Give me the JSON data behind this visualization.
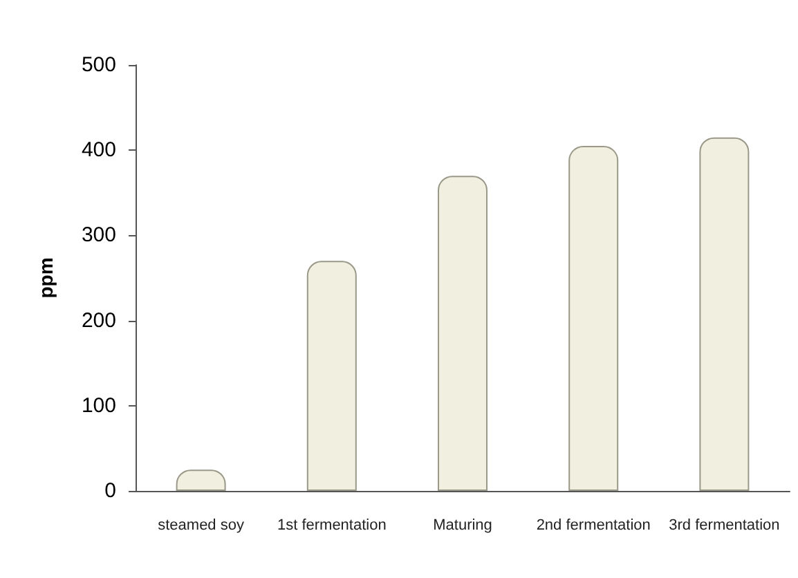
{
  "chart_data": {
    "type": "bar",
    "ylabel": "ppm",
    "categories": [
      "steamed soy",
      "1st fermentation",
      "Maturing",
      "2nd fermentation",
      "3rd fermentation"
    ],
    "values": [
      25,
      270,
      370,
      405,
      415
    ],
    "color": "#f1efdf",
    "ylim": [
      0,
      500
    ],
    "yticks": [
      0,
      100,
      200,
      300,
      400,
      500
    ],
    "grid": false
  }
}
